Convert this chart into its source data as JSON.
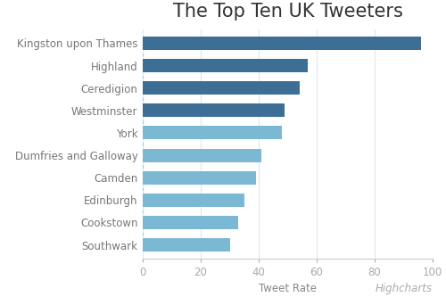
{
  "title": "The Top Ten UK Tweeters",
  "categories": [
    "Kingston upon Thames",
    "Highland",
    "Ceredigion",
    "Westminster",
    "York",
    "Dumfries and Galloway",
    "Camden",
    "Edinburgh",
    "Cookstown",
    "Southwark"
  ],
  "values": [
    96,
    57,
    54,
    49,
    48,
    41,
    39,
    35,
    33,
    30
  ],
  "colors": [
    "#3d6e96",
    "#3d6e96",
    "#3d6e96",
    "#3d6e96",
    "#7ab8d4",
    "#7ab8d4",
    "#7ab8d4",
    "#7ab8d4",
    "#7ab8d4",
    "#7ab8d4"
  ],
  "xlabel": "Tweet Rate",
  "xlim": [
    0,
    100
  ],
  "xticks": [
    0,
    20,
    40,
    60,
    80,
    100
  ],
  "background_color": "#ffffff",
  "grid_color": "#dde8f0",
  "title_fontsize": 15,
  "label_fontsize": 8.5,
  "tick_fontsize": 8.5,
  "watermark": "Highcharts",
  "bar_height": 0.6
}
